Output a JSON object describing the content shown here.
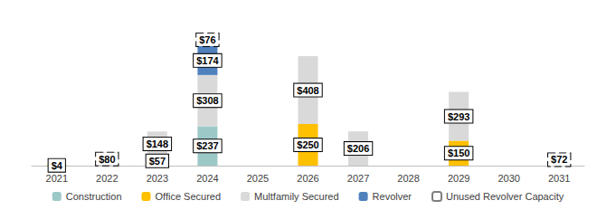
{
  "chart_data": {
    "type": "bar",
    "stacked": true,
    "data_labels": true,
    "tick_labels": "x",
    "grid": false,
    "legend": "bottom",
    "categories": [
      "2021",
      "2022",
      "2023",
      "2024",
      "2025",
      "2026",
      "2027",
      "2028",
      "2029",
      "2030",
      "2031"
    ],
    "ylim": [
      0,
      800
    ],
    "series": [
      {
        "name": "Construction",
        "color": "#9dc8c8",
        "values": [
          null,
          null,
          57,
          237,
          null,
          null,
          null,
          null,
          null,
          null,
          null
        ],
        "value_labels": [
          null,
          null,
          "$57",
          "$237",
          null,
          null,
          null,
          null,
          null,
          null,
          null
        ]
      },
      {
        "name": "Office Secured",
        "color": "#ffc000",
        "values": [
          4,
          null,
          null,
          null,
          null,
          250,
          null,
          null,
          150,
          null,
          null
        ],
        "value_labels": [
          "$4",
          null,
          null,
          null,
          null,
          "$250",
          null,
          null,
          "$150",
          null,
          null
        ]
      },
      {
        "name": "Multfamily Secured",
        "color": "#d9d9d9",
        "values": [
          null,
          null,
          148,
          308,
          null,
          408,
          206,
          null,
          293,
          null,
          null
        ],
        "value_labels": [
          null,
          null,
          "$148",
          "$308",
          null,
          "$408",
          "$206",
          null,
          "$293",
          null,
          null
        ]
      },
      {
        "name": "Revolver",
        "color": "#4f81bd",
        "values": [
          null,
          null,
          null,
          174,
          null,
          null,
          null,
          null,
          null,
          null,
          null
        ],
        "value_labels": [
          null,
          null,
          null,
          "$174",
          null,
          null,
          null,
          null,
          null,
          null,
          null
        ]
      },
      {
        "name": "Unused Revolver Capacity",
        "color": "#ffffff",
        "line_style": "dashed",
        "values": [
          null,
          80,
          null,
          76,
          null,
          null,
          null,
          null,
          null,
          null,
          72
        ],
        "value_labels": [
          null,
          "$80",
          null,
          "$76",
          null,
          null,
          null,
          null,
          null,
          null,
          "$72"
        ]
      }
    ]
  }
}
